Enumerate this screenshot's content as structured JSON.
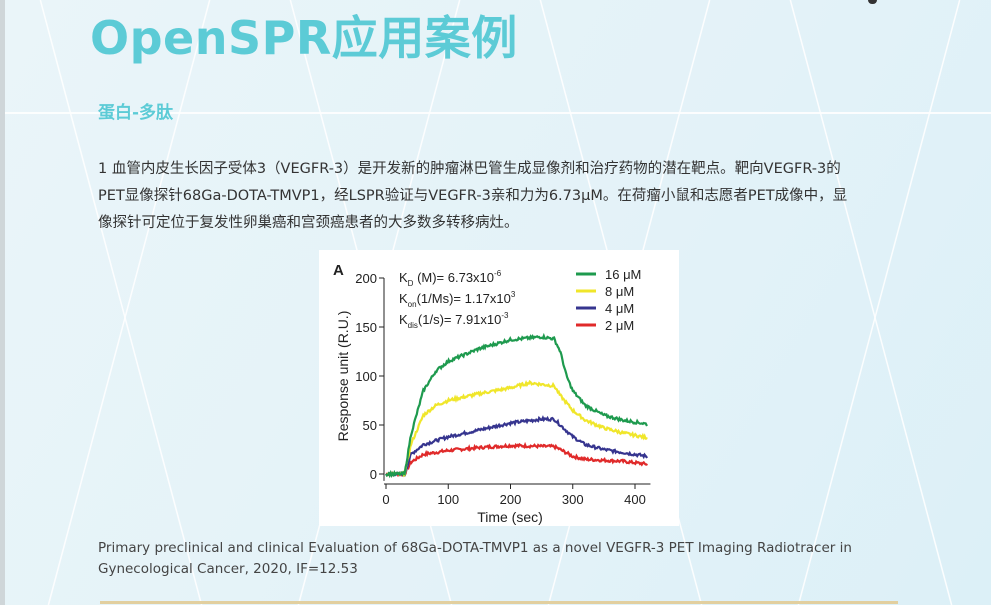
{
  "page": {
    "title": "OpenSPR应用案例",
    "subtitle": "蛋白-多肽",
    "paragraph_lines": [
      "1  血管内皮生长因子受体3（VEGFR-3）是开发新的肿瘤淋巴管生成显像剂和治疗药物的潜在靶点。靶向VEGFR-3的",
      "PET显像探针68Ga-DOTA-TMVP1，经LSPR验证与VEGFR-3亲和力为6.73μM。在荷瘤小鼠和志愿者PET成像中，显",
      "像探针可定位于复发性卵巢癌和宫颈癌患者的大多数多转移病灶。"
    ],
    "caption_lines": [
      "Primary preclinical and clinical Evaluation of 68Ga-DOTA-TMVP1 as a novel VEGFR-3 PET Imaging Radiotracer in",
      "Gynecological Cancer, 2020, IF=12.53"
    ],
    "colors": {
      "accent": "#5ccbd6",
      "rule": "#e2cf9f"
    }
  },
  "chart_data": {
    "type": "line",
    "panel_label": "A",
    "xlabel": "Time (sec)",
    "ylabel": "Response unit (R.U.)",
    "xlim": [
      0,
      420
    ],
    "ylim": [
      -5,
      200
    ],
    "xticks": [
      0,
      100,
      200,
      300,
      400
    ],
    "yticks": [
      0,
      50,
      100,
      150,
      200
    ],
    "grid": false,
    "legend": "top-right",
    "annotations": [
      {
        "k": "K",
        "sub": "D",
        "rest": " (M)= 6.73x10",
        "sup": "-6"
      },
      {
        "k": "K",
        "sub": "on",
        "rest": "(1/Ms)= 1.17x10",
        "sup": "3"
      },
      {
        "k": "K",
        "sub": "dis",
        "rest": "(1/s)= 7.91x10",
        "sup": "-3"
      }
    ],
    "series": [
      {
        "name": "16 μM",
        "color": "#1e9a4e",
        "x": [
          0,
          30,
          40,
          60,
          80,
          100,
          150,
          200,
          250,
          270,
          280,
          290,
          300,
          320,
          350,
          380,
          420
        ],
        "y": [
          0,
          0,
          40,
          85,
          105,
          115,
          128,
          137,
          140,
          138,
          125,
          100,
          85,
          70,
          60,
          55,
          51
        ]
      },
      {
        "name": "8 μM",
        "color": "#f0e62a",
        "x": [
          0,
          30,
          40,
          60,
          80,
          100,
          150,
          200,
          230,
          270,
          280,
          300,
          320,
          350,
          380,
          420
        ],
        "y": [
          0,
          0,
          30,
          60,
          70,
          75,
          82,
          88,
          93,
          90,
          80,
          65,
          55,
          47,
          42,
          37
        ]
      },
      {
        "name": "4 μM",
        "color": "#36358f",
        "x": [
          0,
          30,
          40,
          60,
          100,
          150,
          200,
          250,
          270,
          280,
          300,
          320,
          350,
          380,
          420
        ],
        "y": [
          0,
          0,
          20,
          30,
          38,
          45,
          52,
          56,
          56,
          50,
          38,
          30,
          25,
          22,
          18
        ]
      },
      {
        "name": "2 μM",
        "color": "#e02a2a",
        "x": [
          0,
          30,
          40,
          60,
          100,
          150,
          200,
          270,
          280,
          300,
          320,
          380,
          420
        ],
        "y": [
          0,
          0,
          12,
          20,
          24,
          27,
          29,
          28,
          25,
          18,
          15,
          13,
          10
        ]
      }
    ]
  }
}
